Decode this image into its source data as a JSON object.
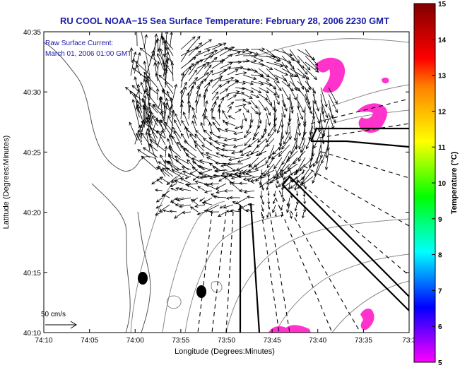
{
  "title": "RU COOL  NOAA−15  Sea Surface Temperature:  February 28, 2006 2230 GMT",
  "annotation": {
    "line1": "Raw Surface Current:",
    "line2": "March 01, 2006 01:00 GMT"
  },
  "axes": {
    "xlabel": "Longitude (Degrees:Minutes)",
    "ylabel": "Latitude (Degrees:Minutes)",
    "xticks": [
      {
        "label": "74:10",
        "value": -74.1667
      },
      {
        "label": "74:05",
        "value": -74.0833
      },
      {
        "label": "74:00",
        "value": -74.0
      },
      {
        "label": "73:55",
        "value": -73.9167
      },
      {
        "label": "73:50",
        "value": -73.8333
      },
      {
        "label": "73:45",
        "value": -73.75
      },
      {
        "label": "73:40",
        "value": -73.6667
      },
      {
        "label": "73:35",
        "value": -73.5833
      },
      {
        "label": "73:3",
        "value": -73.5
      }
    ],
    "yticks": [
      {
        "label": "40:35",
        "value": 40.5833
      },
      {
        "label": "40:30",
        "value": 40.5
      },
      {
        "label": "40:25",
        "value": 40.4167
      },
      {
        "label": "40:20",
        "value": 40.3333
      },
      {
        "label": "40:15",
        "value": 40.25
      },
      {
        "label": "40:10",
        "value": 40.1667
      }
    ],
    "xlim": [
      -74.1667,
      -73.5
    ],
    "ylim": [
      40.1667,
      40.5833
    ]
  },
  "scale": {
    "label": "50 cm/s"
  },
  "colorbar": {
    "label": "Temperature (°C)",
    "min": 5,
    "max": 15,
    "ticks": [
      "15",
      "14",
      "13",
      "12",
      "11",
      "10",
      "9",
      "8",
      "7",
      "6",
      "5"
    ],
    "colors": [
      "#ff00ff",
      "#8000ff",
      "#0000ff",
      "#0080ff",
      "#00ffff",
      "#00ff80",
      "#00ff00",
      "#80ff00",
      "#ffff00",
      "#ffc000",
      "#ff8000",
      "#ff0000",
      "#c00000",
      "#800000"
    ]
  },
  "map": {
    "land_color": "#ffffff",
    "sst_patch_color": "#ff33cc",
    "vector_color": "#000000"
  }
}
